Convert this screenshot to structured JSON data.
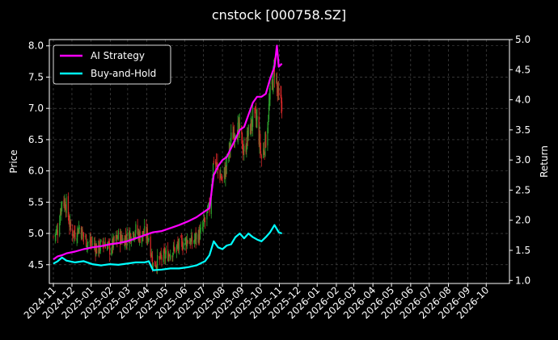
{
  "chart_data": {
    "type": "line",
    "title": "cnstock [000758.SZ]",
    "left_axis": {
      "label": "Price",
      "ylim": [
        4.2,
        8.1
      ],
      "ticks": [
        4.5,
        5.0,
        5.5,
        6.0,
        6.5,
        7.0,
        7.5,
        8.0
      ],
      "tick_labels": [
        "4.5",
        "5.0",
        "5.5",
        "6.0",
        "6.5",
        "7.0",
        "7.5",
        "8.0"
      ]
    },
    "right_axis": {
      "label": "Return",
      "ylim": [
        0.95,
        5.0
      ],
      "ticks": [
        1.0,
        1.5,
        2.0,
        2.5,
        3.0,
        3.5,
        4.0,
        4.5,
        5.0
      ],
      "tick_labels": [
        "1.0",
        "1.5",
        "2.0",
        "2.5",
        "3.0",
        "3.5",
        "4.0",
        "4.5",
        "5.0"
      ]
    },
    "x_axis": {
      "start": "2024-11-01",
      "end": "2026-11-01",
      "tick_labels": [
        "2024-11",
        "2024-12",
        "2025-01",
        "2025-02",
        "2025-03",
        "2025-04",
        "2025-05",
        "2025-06",
        "2025-07",
        "2025-08",
        "2025-09",
        "2025-10",
        "2025-11",
        "2025-12",
        "2026-01",
        "2026-02",
        "2026-03",
        "2026-04",
        "2026-05",
        "2026-06",
        "2026-07",
        "2026-08",
        "2026-09",
        "2026-10"
      ]
    },
    "grid": true,
    "legend_position": "top-left",
    "colors": {
      "up": "#2ca02c",
      "down": "#d62728",
      "ai": "#ff00ff",
      "bh": "#00ffff"
    },
    "price_path": [
      [
        "2024-11-01",
        4.95
      ],
      [
        "2024-11-08",
        5.05
      ],
      [
        "2024-11-15",
        5.55
      ],
      [
        "2024-11-22",
        5.45
      ],
      [
        "2024-11-29",
        5.05
      ],
      [
        "2024-12-06",
        5.0
      ],
      [
        "2024-12-13",
        5.1
      ],
      [
        "2024-12-20",
        4.95
      ],
      [
        "2024-12-27",
        4.85
      ],
      [
        "2025-01-03",
        4.85
      ],
      [
        "2025-01-10",
        4.75
      ],
      [
        "2025-01-17",
        4.8
      ],
      [
        "2025-01-24",
        4.85
      ],
      [
        "2025-01-31",
        4.75
      ],
      [
        "2025-02-07",
        4.85
      ],
      [
        "2025-02-14",
        4.95
      ],
      [
        "2025-02-21",
        4.9
      ],
      [
        "2025-02-28",
        4.95
      ],
      [
        "2025-03-07",
        5.0
      ],
      [
        "2025-03-14",
        5.05
      ],
      [
        "2025-03-21",
        4.95
      ],
      [
        "2025-03-28",
        5.0
      ],
      [
        "2025-04-04",
        4.95
      ],
      [
        "2025-04-11",
        4.5
      ],
      [
        "2025-04-18",
        4.55
      ],
      [
        "2025-04-25",
        4.6
      ],
      [
        "2025-05-02",
        4.65
      ],
      [
        "2025-05-09",
        4.7
      ],
      [
        "2025-05-16",
        4.75
      ],
      [
        "2025-05-23",
        4.8
      ],
      [
        "2025-05-30",
        4.85
      ],
      [
        "2025-06-06",
        4.9
      ],
      [
        "2025-06-13",
        4.85
      ],
      [
        "2025-06-20",
        4.95
      ],
      [
        "2025-06-27",
        5.0
      ],
      [
        "2025-07-04",
        5.2
      ],
      [
        "2025-07-11",
        5.4
      ],
      [
        "2025-07-18",
        6.2
      ],
      [
        "2025-07-25",
        6.0
      ],
      [
        "2025-08-01",
        5.85
      ],
      [
        "2025-08-08",
        6.1
      ],
      [
        "2025-08-15",
        6.5
      ],
      [
        "2025-08-22",
        6.7
      ],
      [
        "2025-08-29",
        6.6
      ],
      [
        "2025-09-05",
        6.3
      ],
      [
        "2025-09-12",
        6.6
      ],
      [
        "2025-09-19",
        6.85
      ],
      [
        "2025-09-26",
        6.8
      ],
      [
        "2025-10-03",
        6.2
      ],
      [
        "2025-10-10",
        6.5
      ],
      [
        "2025-10-17",
        7.2
      ],
      [
        "2025-10-24",
        7.65
      ],
      [
        "2025-10-31",
        7.1
      ],
      [
        "2025-11-05",
        7.1
      ]
    ],
    "series": [
      {
        "name": "AI Strategy",
        "points": [
          [
            "2024-11-01",
            1.35
          ],
          [
            "2024-11-08",
            1.4
          ],
          [
            "2024-11-15",
            1.42
          ],
          [
            "2024-11-22",
            1.45
          ],
          [
            "2024-12-06",
            1.48
          ],
          [
            "2024-12-20",
            1.52
          ],
          [
            "2025-01-03",
            1.55
          ],
          [
            "2025-01-17",
            1.57
          ],
          [
            "2025-01-31",
            1.6
          ],
          [
            "2025-02-14",
            1.62
          ],
          [
            "2025-02-28",
            1.65
          ],
          [
            "2025-03-14",
            1.7
          ],
          [
            "2025-03-28",
            1.75
          ],
          [
            "2025-04-11",
            1.8
          ],
          [
            "2025-04-25",
            1.82
          ],
          [
            "2025-05-09",
            1.87
          ],
          [
            "2025-05-23",
            1.92
          ],
          [
            "2025-06-06",
            1.98
          ],
          [
            "2025-06-20",
            2.05
          ],
          [
            "2025-07-04",
            2.15
          ],
          [
            "2025-07-11",
            2.2
          ],
          [
            "2025-07-18",
            2.75
          ],
          [
            "2025-07-25",
            2.9
          ],
          [
            "2025-08-01",
            3.0
          ],
          [
            "2025-08-08",
            3.05
          ],
          [
            "2025-08-15",
            3.2
          ],
          [
            "2025-08-22",
            3.35
          ],
          [
            "2025-08-29",
            3.5
          ],
          [
            "2025-09-05",
            3.55
          ],
          [
            "2025-09-12",
            3.75
          ],
          [
            "2025-09-19",
            3.95
          ],
          [
            "2025-09-26",
            4.05
          ],
          [
            "2025-10-03",
            4.05
          ],
          [
            "2025-10-10",
            4.1
          ],
          [
            "2025-10-17",
            4.35
          ],
          [
            "2025-10-24",
            4.55
          ],
          [
            "2025-10-28",
            4.9
          ],
          [
            "2025-10-31",
            4.55
          ],
          [
            "2025-11-05",
            4.6
          ]
        ]
      },
      {
        "name": "Buy-and-Hold",
        "points": [
          [
            "2024-11-01",
            1.28
          ],
          [
            "2024-11-08",
            1.32
          ],
          [
            "2024-11-15",
            1.38
          ],
          [
            "2024-11-22",
            1.33
          ],
          [
            "2024-12-06",
            1.3
          ],
          [
            "2024-12-20",
            1.32
          ],
          [
            "2025-01-03",
            1.27
          ],
          [
            "2025-01-17",
            1.25
          ],
          [
            "2025-01-31",
            1.27
          ],
          [
            "2025-02-14",
            1.26
          ],
          [
            "2025-02-28",
            1.28
          ],
          [
            "2025-03-14",
            1.3
          ],
          [
            "2025-03-28",
            1.3
          ],
          [
            "2025-04-04",
            1.32
          ],
          [
            "2025-04-11",
            1.17
          ],
          [
            "2025-04-25",
            1.18
          ],
          [
            "2025-05-09",
            1.2
          ],
          [
            "2025-05-23",
            1.2
          ],
          [
            "2025-06-06",
            1.22
          ],
          [
            "2025-06-20",
            1.25
          ],
          [
            "2025-07-04",
            1.32
          ],
          [
            "2025-07-11",
            1.42
          ],
          [
            "2025-07-18",
            1.65
          ],
          [
            "2025-07-25",
            1.55
          ],
          [
            "2025-08-01",
            1.52
          ],
          [
            "2025-08-08",
            1.58
          ],
          [
            "2025-08-15",
            1.6
          ],
          [
            "2025-08-22",
            1.72
          ],
          [
            "2025-08-29",
            1.78
          ],
          [
            "2025-09-05",
            1.7
          ],
          [
            "2025-09-12",
            1.78
          ],
          [
            "2025-09-19",
            1.72
          ],
          [
            "2025-09-26",
            1.68
          ],
          [
            "2025-10-03",
            1.65
          ],
          [
            "2025-10-10",
            1.72
          ],
          [
            "2025-10-17",
            1.8
          ],
          [
            "2025-10-24",
            1.92
          ],
          [
            "2025-10-31",
            1.8
          ],
          [
            "2025-11-05",
            1.78
          ]
        ]
      }
    ]
  }
}
